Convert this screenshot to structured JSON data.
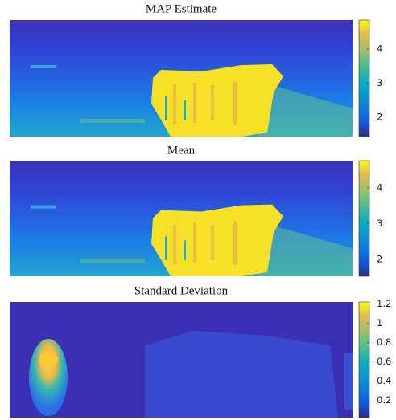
{
  "chart_data": [
    {
      "type": "heatmap",
      "title": "MAP Estimate",
      "zlim": [
        1.43,
        4.85
      ],
      "zticks": [
        2,
        3,
        4
      ]
    },
    {
      "type": "heatmap",
      "title": "Mean",
      "zlim": [
        1.53,
        4.76
      ],
      "zticks": [
        2,
        3,
        4
      ]
    },
    {
      "type": "heatmap",
      "title": "Standard Deviation",
      "zlim": [
        0.02,
        1.22
      ],
      "zticks": [
        0.2,
        0.4,
        0.6,
        0.8,
        1,
        1.2
      ]
    }
  ]
}
